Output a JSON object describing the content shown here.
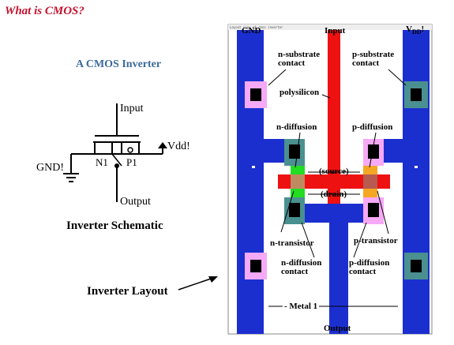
{
  "page_title": "What is CMOS?",
  "subtitle": "A CMOS Inverter",
  "schematic": {
    "input_label": "Input",
    "vdd_label": "Vdd!",
    "gnd_label": "GND!",
    "n_transistor": "N1",
    "p_transistor": "P1",
    "output_label": "Output",
    "title": "Inverter Schematic"
  },
  "layout_caption": "Inverter Layout",
  "layout": {
    "header_text": "Layout view of cmos inverter",
    "gnd": "GND",
    "input": "Input",
    "vdd_main": "V",
    "vdd_sub": "DD",
    "n_substrate_contact": [
      "n-substrate",
      "contact"
    ],
    "p_substrate_contact": [
      "p-substrate",
      "contact"
    ],
    "polysilicon": "polysilicon",
    "n_diffusion": "n-diffusion",
    "p_diffusion": "p-diffusion",
    "source": "(source)",
    "drain": "(drain)",
    "n_transistor": "n-transistor",
    "p_transistor": "p-transistor",
    "n_diffusion_contact": [
      "n-diffusion",
      "contact"
    ],
    "p_diffusion_contact": [
      "p-diffusion",
      "contact"
    ],
    "metal1": "Metal 1",
    "output": "Output"
  },
  "colors": {
    "title": "#c4122e",
    "subtitle": "#3c6a9c",
    "metal1": "#1b2fcf",
    "polysilicon": "#ee1111",
    "n_substrate_contact": "#f6a9f6",
    "p_substrate_contact": "#4a9090",
    "n_diffusion": "#22dd22",
    "p_diffusion": "#f5a623"
  }
}
